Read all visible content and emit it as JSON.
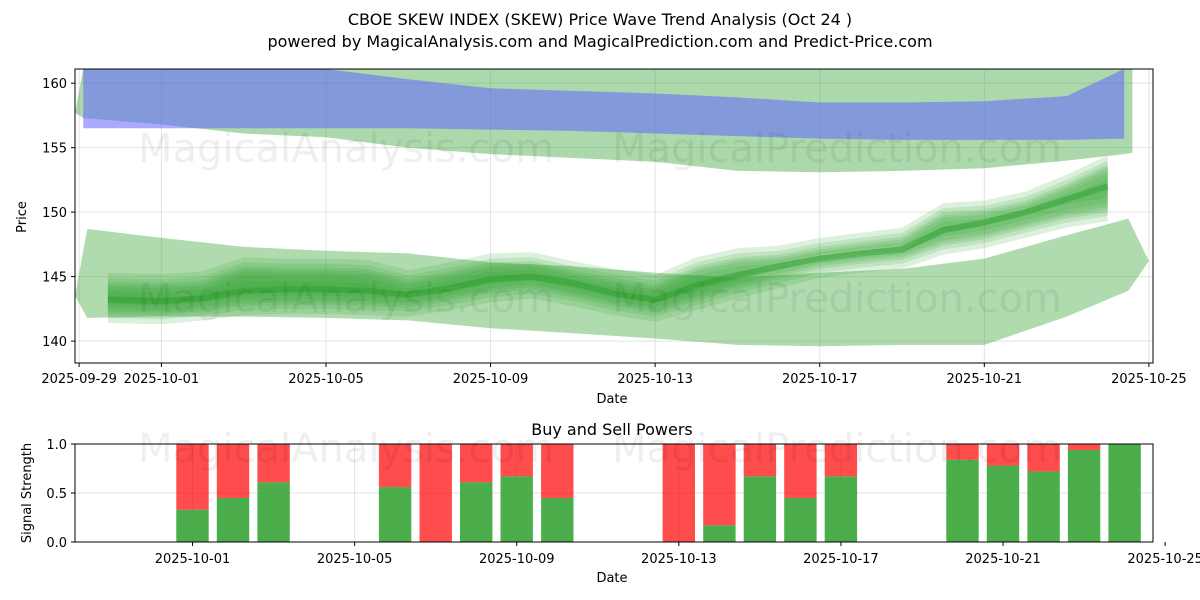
{
  "title_line1": "CBOE SKEW INDEX (SKEW) Price Wave Trend Analysis (Oct 24 )",
  "title_line2": "powered by MagicalAnalysis.com and MagicalPrediction.com and Predict-Price.com",
  "watermarks": [
    "MagicalAnalysis.com",
    "MagicalPrediction.com"
  ],
  "colors": {
    "green": "#2ca02c",
    "blue": "#6464ff",
    "overlap": "#7a9ca9",
    "buy": "#2ca02c",
    "sell": "#ff0000"
  },
  "chart_data": [
    {
      "type": "area",
      "name": "price-wave-chart",
      "xlabel": "Date",
      "ylabel": "Price",
      "xlim": [
        -0.1,
        26.1
      ],
      "ylim": [
        138.3,
        161.1
      ],
      "x_ticks": [
        {
          "day": 0,
          "label": "2025-09-29"
        },
        {
          "day": 2,
          "label": "2025-10-01"
        },
        {
          "day": 6,
          "label": "2025-10-05"
        },
        {
          "day": 10,
          "label": "2025-10-09"
        },
        {
          "day": 14,
          "label": "2025-10-13"
        },
        {
          "day": 18,
          "label": "2025-10-17"
        },
        {
          "day": 22,
          "label": "2025-10-21"
        },
        {
          "day": 26,
          "label": "2025-10-25"
        }
      ],
      "y_ticks": [
        140,
        145,
        150,
        155,
        160
      ],
      "grid": true,
      "upper_blue_band": {
        "x": [
          0.1,
          2,
          4,
          6,
          8,
          10,
          12,
          14,
          16,
          18,
          20,
          22,
          24,
          25.4
        ],
        "upper": [
          161.5,
          161.5,
          161.5,
          161.5,
          160.3,
          159.6,
          159.4,
          159.2,
          158.9,
          158.5,
          158.5,
          158.6,
          159.0,
          161.5
        ],
        "lower": [
          156.5,
          156.5,
          156.5,
          156.5,
          156.5,
          156.4,
          156.3,
          156.1,
          155.9,
          155.7,
          155.6,
          155.6,
          155.6,
          155.7
        ]
      },
      "upper_green_band": {
        "x": [
          -0.1,
          0.1,
          2,
          4,
          6,
          8,
          10,
          12,
          14,
          16,
          18,
          20,
          22,
          24,
          25.4,
          25.6
        ],
        "upper": [
          157.7,
          161.5,
          161.5,
          161.5,
          161.5,
          161.5,
          161.5,
          161.5,
          161.5,
          161.5,
          161.5,
          161.5,
          161.5,
          161.5,
          161.5,
          161.5
        ],
        "lower": [
          157.7,
          157.3,
          156.8,
          156.1,
          155.8,
          155.0,
          154.5,
          154.2,
          153.9,
          153.2,
          153.1,
          153.2,
          153.4,
          154.0,
          154.5,
          154.6
        ]
      },
      "lower_green_band": {
        "x": [
          -0.1,
          0.2,
          2,
          4,
          6,
          8,
          10,
          12,
          14,
          16,
          18,
          20,
          22,
          24,
          25.5,
          26
        ],
        "upper": [
          143.5,
          148.7,
          148.0,
          147.3,
          147.0,
          146.8,
          146.1,
          145.8,
          145.3,
          144.9,
          145.3,
          145.6,
          146.4,
          148.2,
          149.5,
          146.2
        ],
        "lower": [
          143.5,
          141.8,
          141.9,
          141.9,
          141.8,
          141.6,
          141.0,
          140.6,
          140.2,
          139.7,
          139.6,
          139.7,
          139.7,
          141.9,
          143.9,
          146.2
        ]
      },
      "wave_band": {
        "x": [
          0.7,
          2,
          3,
          4,
          5,
          6,
          7,
          8,
          9,
          10,
          11,
          12,
          13,
          14,
          15,
          16,
          17,
          18,
          19,
          20,
          21,
          22,
          23,
          24,
          25
        ],
        "upper": [
          144.4,
          144.3,
          144.5,
          145.6,
          145.5,
          145.5,
          145.4,
          144.6,
          145.2,
          145.9,
          146.0,
          145.3,
          144.7,
          144.2,
          145.6,
          146.3,
          146.5,
          147.1,
          147.5,
          147.9,
          149.8,
          150.0,
          150.7,
          152.0,
          153.5
        ],
        "lower": [
          142.3,
          142.2,
          142.5,
          142.9,
          143.0,
          143.0,
          142.9,
          142.8,
          143.3,
          143.9,
          144.2,
          143.6,
          142.9,
          142.4,
          143.3,
          144.2,
          145.0,
          145.8,
          146.2,
          146.5,
          147.6,
          148.1,
          148.9,
          149.7,
          150.2
        ]
      },
      "wave_center": {
        "x": [
          0.7,
          2,
          3,
          4,
          5,
          6,
          7,
          8,
          9,
          10,
          11,
          12,
          13,
          14,
          15,
          16,
          17,
          18,
          19,
          20,
          21,
          22,
          23,
          24,
          25
        ],
        "y": [
          143.2,
          143.1,
          143.3,
          143.9,
          144.0,
          144.0,
          143.9,
          143.6,
          144.1,
          144.8,
          145.0,
          144.5,
          143.7,
          143.2,
          144.3,
          145.1,
          145.8,
          146.4,
          146.8,
          147.1,
          148.6,
          149.2,
          150.0,
          151.0,
          152.0
        ]
      }
    },
    {
      "type": "bar",
      "name": "buy-sell-powers",
      "title": "Buy and Sell Powers",
      "xlabel": "Date",
      "ylabel": "Signal Strength",
      "ylim": [
        0,
        1
      ],
      "xlim": [
        -0.9,
        25.7
      ],
      "y_ticks": [
        0.0,
        0.5,
        1.0
      ],
      "y_tick_labels": [
        "0.0",
        "0.5",
        "1.0"
      ],
      "x_ticks": [
        {
          "day": 2,
          "label": "2025-10-01"
        },
        {
          "day": 6,
          "label": "2025-10-05"
        },
        {
          "day": 10,
          "label": "2025-10-09"
        },
        {
          "day": 14,
          "label": "2025-10-13"
        },
        {
          "day": 18,
          "label": "2025-10-17"
        },
        {
          "day": 22,
          "label": "2025-10-21"
        },
        {
          "day": 26,
          "label": "2025-10-25"
        }
      ],
      "grid": true,
      "days": [
        2,
        3,
        4,
        7,
        8,
        9,
        10,
        11,
        14,
        15,
        16,
        17,
        18,
        21,
        22,
        23,
        24,
        25
      ],
      "buy": [
        0.33,
        0.45,
        0.61,
        0.56,
        0.0,
        0.61,
        0.67,
        0.45,
        0.0,
        0.17,
        0.67,
        0.45,
        0.67,
        0.84,
        0.78,
        0.72,
        0.94,
        1.0
      ],
      "sell": [
        0.67,
        0.55,
        0.39,
        0.44,
        1.0,
        0.39,
        0.33,
        0.55,
        1.0,
        0.83,
        0.33,
        0.55,
        0.33,
        0.16,
        0.22,
        0.28,
        0.06,
        0.0
      ]
    }
  ]
}
